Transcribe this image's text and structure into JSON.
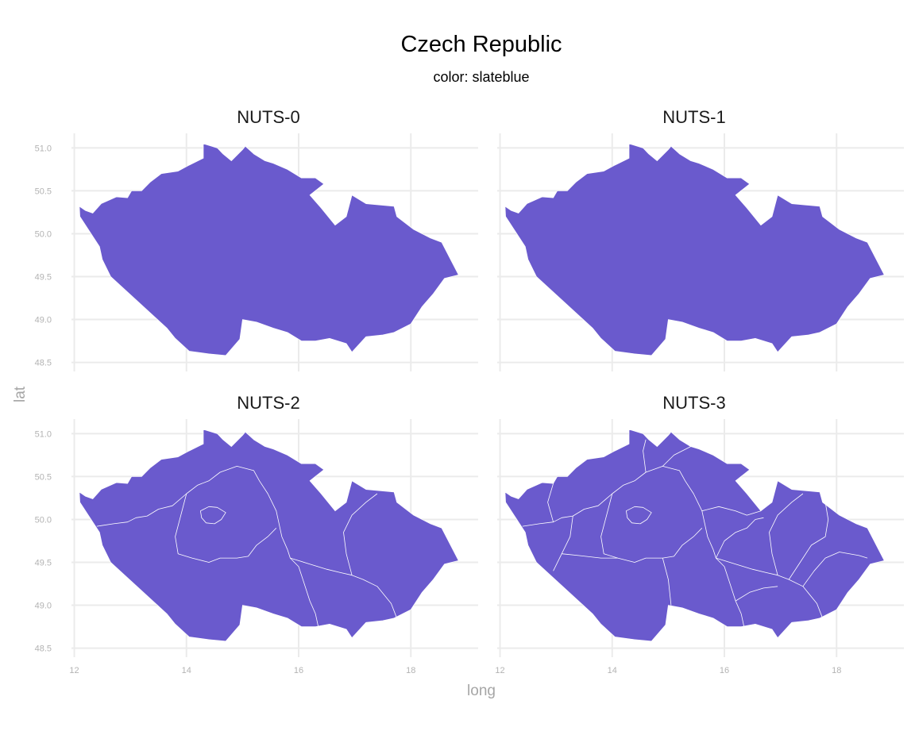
{
  "chart_data": {
    "type": "map",
    "title": "Czech Republic",
    "subtitle": "color: slateblue",
    "xlabel": "long",
    "ylabel": "lat",
    "fill_color": "#6a5acd",
    "xlim": [
      11.95,
      19.2
    ],
    "ylim": [
      48.45,
      51.17
    ],
    "x_breaks": [
      12,
      14,
      16,
      18
    ],
    "x_labels": [
      "12",
      "14",
      "16",
      "18"
    ],
    "y_breaks": [
      48.5,
      49.0,
      49.5,
      50.0,
      50.5,
      51.0
    ],
    "y_labels": [
      "48.5",
      "49.0",
      "49.5",
      "50.0",
      "50.5",
      "51.0"
    ],
    "panels": [
      {
        "label": "NUTS-0",
        "level": 0
      },
      {
        "label": "NUTS-1",
        "level": 1
      },
      {
        "label": "NUTS-2",
        "level": 2
      },
      {
        "label": "NUTS-3",
        "level": 3
      }
    ],
    "outline": [
      [
        12.09,
        50.32
      ],
      [
        12.2,
        50.27
      ],
      [
        12.33,
        50.24
      ],
      [
        12.48,
        50.35
      ],
      [
        12.75,
        50.43
      ],
      [
        12.95,
        50.42
      ],
      [
        13.02,
        50.5
      ],
      [
        13.2,
        50.5
      ],
      [
        13.35,
        50.6
      ],
      [
        13.55,
        50.7
      ],
      [
        13.85,
        50.73
      ],
      [
        14.05,
        50.8
      ],
      [
        14.3,
        50.88
      ],
      [
        14.3,
        51.05
      ],
      [
        14.55,
        51.0
      ],
      [
        14.65,
        50.93
      ],
      [
        14.8,
        50.85
      ],
      [
        15.0,
        50.98
      ],
      [
        15.05,
        51.02
      ],
      [
        15.2,
        50.93
      ],
      [
        15.4,
        50.85
      ],
      [
        15.55,
        50.82
      ],
      [
        15.8,
        50.75
      ],
      [
        16.05,
        50.65
      ],
      [
        16.3,
        50.65
      ],
      [
        16.45,
        50.58
      ],
      [
        16.2,
        50.45
      ],
      [
        16.4,
        50.3
      ],
      [
        16.65,
        50.1
      ],
      [
        16.85,
        50.2
      ],
      [
        16.95,
        50.45
      ],
      [
        17.2,
        50.35
      ],
      [
        17.7,
        50.32
      ],
      [
        17.75,
        50.2
      ],
      [
        18.05,
        50.05
      ],
      [
        18.35,
        49.95
      ],
      [
        18.55,
        49.9
      ],
      [
        18.85,
        49.52
      ],
      [
        18.6,
        49.48
      ],
      [
        18.4,
        49.3
      ],
      [
        18.2,
        49.15
      ],
      [
        18.0,
        48.95
      ],
      [
        17.7,
        48.85
      ],
      [
        17.5,
        48.82
      ],
      [
        17.2,
        48.8
      ],
      [
        16.95,
        48.62
      ],
      [
        16.85,
        48.72
      ],
      [
        16.55,
        48.78
      ],
      [
        16.3,
        48.75
      ],
      [
        16.05,
        48.75
      ],
      [
        15.8,
        48.85
      ],
      [
        15.55,
        48.9
      ],
      [
        15.25,
        48.97
      ],
      [
        15.0,
        49.0
      ],
      [
        14.95,
        48.77
      ],
      [
        14.7,
        48.58
      ],
      [
        14.4,
        48.6
      ],
      [
        14.05,
        48.63
      ],
      [
        13.8,
        48.78
      ],
      [
        13.65,
        48.9
      ],
      [
        13.4,
        49.05
      ],
      [
        13.15,
        49.2
      ],
      [
        12.9,
        49.35
      ],
      [
        12.65,
        49.5
      ],
      [
        12.5,
        49.7
      ],
      [
        12.45,
        49.85
      ],
      [
        12.25,
        50.05
      ],
      [
        12.1,
        50.2
      ]
    ],
    "prague": [
      [
        14.25,
        50.1
      ],
      [
        14.4,
        50.15
      ],
      [
        14.55,
        50.14
      ],
      [
        14.7,
        50.08
      ],
      [
        14.62,
        50.0
      ],
      [
        14.5,
        49.95
      ],
      [
        14.35,
        49.96
      ],
      [
        14.27,
        50.02
      ]
    ],
    "borders_nuts1": [],
    "borders_nuts2": [
      [
        [
          12.4,
          49.92
        ],
        [
          12.7,
          49.95
        ],
        [
          12.95,
          49.97
        ],
        [
          13.1,
          50.02
        ],
        [
          13.3,
          50.04
        ],
        [
          13.5,
          50.12
        ],
        [
          13.75,
          50.16
        ],
        [
          14.0,
          50.3
        ],
        [
          14.2,
          50.4
        ],
        [
          14.4,
          50.45
        ],
        [
          14.6,
          50.55
        ],
        [
          14.9,
          50.62
        ],
        [
          15.2,
          50.57
        ],
        [
          15.3,
          50.45
        ],
        [
          15.45,
          50.3
        ],
        [
          15.6,
          50.1
        ],
        [
          15.7,
          49.8
        ],
        [
          15.8,
          49.65
        ],
        [
          15.85,
          49.55
        ],
        [
          16.0,
          49.45
        ],
        [
          16.1,
          49.25
        ],
        [
          16.2,
          49.05
        ],
        [
          16.3,
          48.9
        ],
        [
          16.35,
          48.75
        ]
      ],
      [
        [
          15.85,
          49.55
        ],
        [
          16.2,
          49.48
        ],
        [
          16.5,
          49.42
        ],
        [
          16.75,
          49.38
        ],
        [
          16.95,
          49.35
        ],
        [
          17.15,
          49.3
        ],
        [
          17.4,
          49.22
        ],
        [
          17.65,
          49.02
        ],
        [
          17.75,
          48.85
        ]
      ],
      [
        [
          16.95,
          49.35
        ],
        [
          16.85,
          49.6
        ],
        [
          16.8,
          49.85
        ],
        [
          16.95,
          50.05
        ],
        [
          17.2,
          50.2
        ],
        [
          17.4,
          50.3
        ]
      ],
      [
        [
          14.0,
          50.3
        ],
        [
          13.9,
          50.05
        ],
        [
          13.8,
          49.8
        ],
        [
          13.85,
          49.6
        ],
        [
          14.1,
          49.55
        ],
        [
          14.4,
          49.5
        ],
        [
          14.6,
          49.55
        ],
        [
          14.9,
          49.55
        ],
        [
          15.1,
          49.57
        ],
        [
          15.25,
          49.7
        ],
        [
          15.45,
          49.8
        ],
        [
          15.6,
          49.9
        ]
      ]
    ],
    "borders_nuts3_extra": [
      [
        [
          12.95,
          49.97
        ],
        [
          12.85,
          50.2
        ],
        [
          12.95,
          50.42
        ]
      ],
      [
        [
          13.3,
          50.04
        ],
        [
          13.25,
          49.8
        ],
        [
          13.1,
          49.6
        ],
        [
          12.95,
          49.4
        ]
      ],
      [
        [
          13.1,
          49.6
        ],
        [
          13.4,
          49.58
        ],
        [
          13.8,
          49.55
        ],
        [
          14.1,
          49.55
        ]
      ],
      [
        [
          14.6,
          50.55
        ],
        [
          14.55,
          50.8
        ],
        [
          14.6,
          50.93
        ]
      ],
      [
        [
          14.9,
          50.62
        ],
        [
          15.1,
          50.75
        ],
        [
          15.4,
          50.85
        ]
      ],
      [
        [
          15.6,
          50.1
        ],
        [
          15.9,
          50.15
        ],
        [
          16.2,
          50.1
        ],
        [
          16.4,
          50.05
        ],
        [
          16.65,
          50.1
        ]
      ],
      [
        [
          15.85,
          49.55
        ],
        [
          16.0,
          49.75
        ],
        [
          16.2,
          49.85
        ],
        [
          16.4,
          49.9
        ],
        [
          16.55,
          50.0
        ],
        [
          16.7,
          50.02
        ]
      ],
      [
        [
          14.9,
          49.55
        ],
        [
          15.0,
          49.3
        ],
        [
          15.05,
          49.0
        ]
      ],
      [
        [
          16.2,
          49.05
        ],
        [
          16.45,
          49.15
        ],
        [
          16.7,
          49.2
        ],
        [
          16.95,
          49.22
        ]
      ],
      [
        [
          17.4,
          49.22
        ],
        [
          17.6,
          49.4
        ],
        [
          17.8,
          49.55
        ],
        [
          18.05,
          49.62
        ],
        [
          18.4,
          49.58
        ],
        [
          18.55,
          49.55
        ]
      ],
      [
        [
          17.15,
          49.3
        ],
        [
          17.35,
          49.5
        ],
        [
          17.55,
          49.7
        ],
        [
          17.8,
          49.8
        ],
        [
          17.85,
          50.0
        ],
        [
          17.8,
          50.2
        ]
      ]
    ]
  }
}
